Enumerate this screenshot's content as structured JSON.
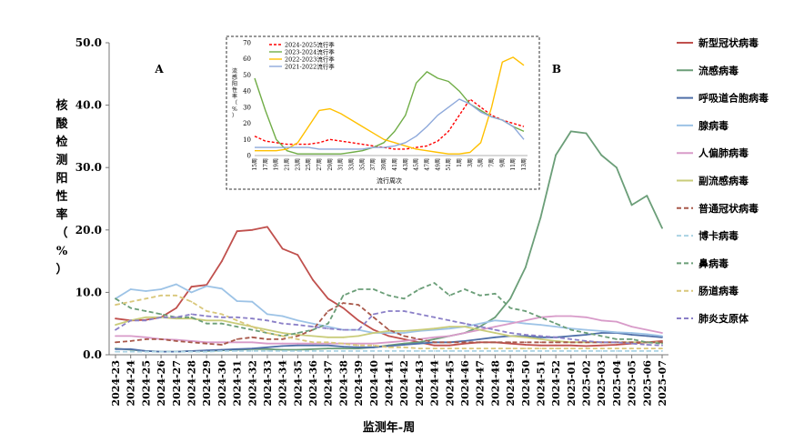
{
  "chart_data": [
    {
      "type": "line",
      "xlabel": "监测年-周",
      "ylabel": "核酸检测阳性率（%）",
      "ylim": [
        0,
        50
      ],
      "yticks": [
        "0.0",
        "10.0",
        "20.0",
        "30.0",
        "40.0",
        "50.0"
      ],
      "annotations": [
        "A",
        "B"
      ],
      "legend_position": "right",
      "categories": [
        "2024-23",
        "2024-24",
        "2024-25",
        "2024-26",
        "2024-27",
        "2024-28",
        "2024-29",
        "2024-30",
        "2024-31",
        "2024-32",
        "2024-33",
        "2024-34",
        "2024-35",
        "2024-36",
        "2024-37",
        "2024-38",
        "2024-39",
        "2024-40",
        "2024-41",
        "2024-42",
        "2024-43",
        "2024-44",
        "2024-45",
        "2024-46",
        "2024-47",
        "2024-48",
        "2024-49",
        "2024-50",
        "2024-51",
        "2024-52",
        "2025-01",
        "2025-02",
        "2025-03",
        "2025-04",
        "2025-05",
        "2025-06",
        "2025-07"
      ],
      "series": [
        {
          "name": "新型冠状病毒",
          "color": "#c0504d",
          "dash": "solid",
          "values": [
            5.8,
            5.5,
            5.6,
            6.0,
            7.5,
            10.9,
            11.2,
            15.0,
            19.8,
            20.0,
            20.5,
            17.0,
            16.0,
            12.0,
            9.0,
            7.5,
            5.5,
            4.0,
            3.0,
            2.5,
            2.0,
            1.5,
            1.5,
            1.8,
            2.0,
            2.0,
            1.8,
            1.6,
            1.5,
            1.5,
            1.5,
            1.4,
            1.5,
            1.6,
            1.8,
            2.0,
            2.2
          ]
        },
        {
          "name": "流感病毒",
          "color": "#6b9e78",
          "dash": "solid",
          "values": [
            1.0,
            0.8,
            0.6,
            0.5,
            0.5,
            0.6,
            0.6,
            0.7,
            0.8,
            0.9,
            0.9,
            0.8,
            0.8,
            0.9,
            1.0,
            1.0,
            1.0,
            1.2,
            1.5,
            1.8,
            2.0,
            2.5,
            3.0,
            3.5,
            4.5,
            6.0,
            9.0,
            14.0,
            22.0,
            32.0,
            35.8,
            35.5,
            32.0,
            30.0,
            24.0,
            25.5,
            20.3
          ]
        },
        {
          "name": "呼吸道合胞病毒",
          "color": "#4f6fa8",
          "dash": "solid",
          "values": [
            0.9,
            0.9,
            0.6,
            0.5,
            0.5,
            0.6,
            0.7,
            0.8,
            0.9,
            1.0,
            1.2,
            1.4,
            1.5,
            1.5,
            1.5,
            1.3,
            1.2,
            1.2,
            1.4,
            1.6,
            1.8,
            2.0,
            2.0,
            2.2,
            2.5,
            2.8,
            3.0,
            3.0,
            2.8,
            2.8,
            3.0,
            3.2,
            3.5,
            3.5,
            3.2,
            3.0,
            2.8
          ]
        },
        {
          "name": "腺病毒",
          "color": "#9dc3e6",
          "dash": "solid",
          "values": [
            9.0,
            10.5,
            10.2,
            10.5,
            11.3,
            10.0,
            11.0,
            10.6,
            8.6,
            8.5,
            6.5,
            6.2,
            5.5,
            5.0,
            4.5,
            4.0,
            4.0,
            3.5,
            3.5,
            3.5,
            3.8,
            4.0,
            4.2,
            4.5,
            5.0,
            5.5,
            5.3,
            5.0,
            4.8,
            4.5,
            4.2,
            4.0,
            3.8,
            3.6,
            3.5,
            3.3,
            3.0
          ]
        },
        {
          "name": "人偏肺病毒",
          "color": "#d89bc9",
          "dash": "solid",
          "values": [
            3.0,
            3.0,
            2.8,
            2.5,
            2.4,
            2.2,
            2.0,
            2.0,
            2.0,
            2.0,
            1.8,
            1.8,
            1.8,
            1.8,
            1.8,
            1.8,
            1.8,
            1.8,
            2.0,
            2.2,
            2.5,
            2.8,
            3.0,
            3.5,
            4.0,
            4.5,
            5.0,
            5.5,
            6.0,
            6.2,
            6.2,
            6.0,
            5.5,
            5.3,
            4.5,
            4.0,
            3.5
          ]
        },
        {
          "name": "副流感病毒",
          "color": "#c9cc7a",
          "dash": "solid",
          "values": [
            4.8,
            5.5,
            6.0,
            6.0,
            5.8,
            5.8,
            5.5,
            5.5,
            5.0,
            4.5,
            4.0,
            3.5,
            3.2,
            3.0,
            2.8,
            2.8,
            3.0,
            3.5,
            3.8,
            3.8,
            4.0,
            4.2,
            4.5,
            4.5,
            4.0,
            3.5,
            3.0,
            2.8,
            2.5,
            2.2,
            2.0,
            2.0,
            2.0,
            2.0,
            2.0,
            2.0,
            2.0
          ]
        },
        {
          "name": "普通冠状病毒",
          "color": "#a8584a",
          "dash": "dash",
          "values": [
            2.0,
            2.2,
            2.5,
            2.5,
            2.2,
            2.0,
            1.8,
            1.6,
            2.5,
            2.8,
            2.5,
            2.5,
            3.0,
            4.0,
            7.0,
            8.3,
            8.0,
            6.0,
            4.0,
            3.0,
            2.5,
            2.0,
            2.0,
            2.0,
            2.0,
            2.0,
            2.0,
            2.0,
            2.0,
            2.0,
            2.0,
            2.0,
            2.0,
            2.0,
            2.0,
            2.0,
            2.0
          ]
        },
        {
          "name": "博卡病毒",
          "color": "#a9d2e3",
          "dash": "dash",
          "values": [
            0.5,
            0.5,
            0.5,
            0.5,
            0.5,
            0.5,
            0.5,
            0.6,
            0.6,
            0.6,
            0.6,
            0.6,
            0.6,
            0.6,
            0.6,
            0.6,
            0.6,
            0.6,
            0.6,
            0.6,
            0.6,
            0.6,
            0.6,
            0.6,
            0.6,
            0.6,
            0.6,
            0.6,
            0.6,
            0.6,
            0.6,
            0.6,
            0.6,
            0.6,
            0.6,
            0.6,
            0.6
          ]
        },
        {
          "name": "鼻病毒",
          "color": "#6b9e78",
          "dash": "dash",
          "values": [
            9.0,
            7.5,
            7.0,
            6.5,
            6.0,
            6.0,
            5.0,
            5.0,
            4.5,
            4.0,
            3.5,
            3.0,
            3.5,
            4.0,
            5.0,
            9.5,
            10.5,
            10.5,
            9.5,
            9.0,
            10.5,
            11.5,
            9.5,
            10.5,
            9.5,
            9.8,
            7.5,
            7.0,
            6.0,
            5.0,
            4.0,
            3.5,
            3.0,
            2.5,
            2.5,
            2.0,
            1.8
          ]
        },
        {
          "name": "肠道病毒",
          "color": "#d9c77a",
          "dash": "dash",
          "values": [
            8.0,
            8.5,
            9.0,
            9.5,
            9.5,
            8.5,
            7.0,
            6.5,
            5.5,
            4.5,
            3.5,
            3.0,
            2.5,
            2.0,
            2.0,
            1.8,
            1.5,
            1.5,
            1.2,
            1.2,
            1.0,
            1.0,
            1.0,
            1.0,
            1.0,
            1.0,
            1.0,
            1.0,
            1.0,
            1.0,
            1.0,
            1.0,
            1.0,
            1.0,
            1.0,
            1.0,
            1.0
          ]
        },
        {
          "name": "肺炎支原体",
          "color": "#8a7fc7",
          "dash": "dash",
          "values": [
            4.0,
            5.5,
            5.5,
            6.0,
            6.0,
            6.5,
            6.2,
            6.0,
            6.0,
            5.8,
            5.5,
            5.0,
            4.8,
            4.5,
            4.2,
            4.0,
            4.0,
            6.5,
            7.0,
            7.0,
            6.5,
            6.0,
            5.5,
            5.0,
            4.5,
            4.0,
            3.5,
            3.2,
            3.0,
            2.8,
            2.5,
            2.2,
            2.0,
            2.0,
            1.8,
            1.6,
            1.5
          ]
        }
      ]
    },
    {
      "type": "line",
      "title": "",
      "xlabel": "流行周次",
      "ylabel": "流感阳性率（%）",
      "ylim": [
        0,
        70
      ],
      "yticks": [
        "0",
        "10",
        "20",
        "30",
        "40",
        "50",
        "60",
        "70"
      ],
      "legend_position": "top-left",
      "categories": [
        "15周",
        "17周",
        "19周",
        "21周",
        "23周",
        "25周",
        "27周",
        "29周",
        "31周",
        "33周",
        "35周",
        "37周",
        "39周",
        "41周",
        "43周",
        "45周",
        "47周",
        "49周",
        "51周",
        "1周",
        "3周",
        "5周",
        "7周",
        "9周",
        "11周",
        "13周"
      ],
      "series": [
        {
          "name": "2024-2025流行季",
          "color": "#ff0000",
          "dash": "dash",
          "values": [
            12,
            9,
            8,
            7,
            7,
            7,
            8,
            10,
            9,
            8,
            7,
            6,
            5,
            4,
            4,
            5,
            6,
            9,
            15,
            25,
            35,
            30,
            25,
            22,
            20,
            18
          ]
        },
        {
          "name": "2023-2024流行季",
          "color": "#70ad47",
          "dash": "solid",
          "values": [
            48,
            28,
            10,
            3,
            1,
            1,
            1,
            1,
            1,
            2,
            3,
            5,
            8,
            15,
            25,
            45,
            52,
            48,
            46,
            40,
            32,
            28,
            24,
            22,
            18,
            15
          ]
        },
        {
          "name": "2022-2023流行季",
          "color": "#ffc000",
          "dash": "solid",
          "values": [
            3,
            3,
            3,
            4,
            8,
            18,
            28,
            29,
            26,
            22,
            18,
            14,
            10,
            8,
            6,
            4,
            3,
            2,
            1,
            1,
            2,
            8,
            30,
            58,
            61,
            56
          ]
        },
        {
          "name": "2021-2022流行季",
          "color": "#8ea9db",
          "dash": "solid",
          "values": [
            5,
            5,
            5,
            5,
            5,
            5,
            4,
            4,
            4,
            4,
            4,
            5,
            5,
            6,
            8,
            12,
            18,
            25,
            30,
            35,
            32,
            27,
            24,
            22,
            18,
            10
          ]
        }
      ]
    }
  ]
}
